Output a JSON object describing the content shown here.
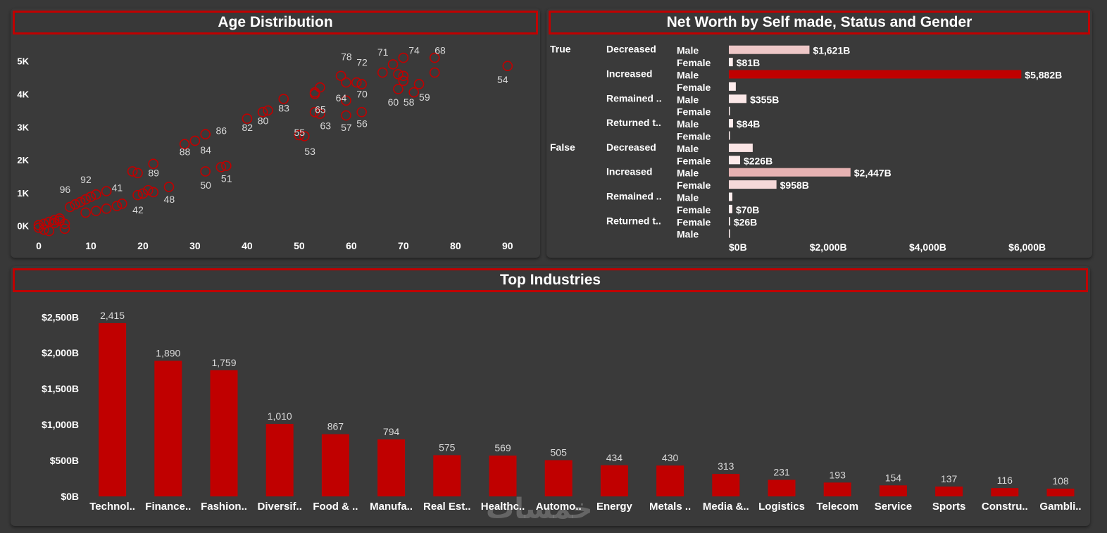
{
  "panels": {
    "age_title": "Age Distribution",
    "networth_title": "Net Worth by Self made, Status and Gender",
    "industries_title": "Top Industries"
  },
  "watermark": "خمسات",
  "colors": {
    "accent": "#c00000",
    "bg": "#383838",
    "panel": "#3a3a3a"
  },
  "chart_data": [
    {
      "type": "scatter",
      "title": "Age Distribution",
      "xlabel": "",
      "ylabel": "",
      "xlim": [
        0,
        93
      ],
      "ylim": [
        -200,
        5400
      ],
      "x_ticks": [
        0,
        10,
        20,
        30,
        40,
        50,
        60,
        70,
        80,
        90
      ],
      "y_ticks": [
        {
          "v": 0,
          "label": "0K"
        },
        {
          "v": 1000,
          "label": "1K"
        },
        {
          "v": 2000,
          "label": "2K"
        },
        {
          "v": 3000,
          "label": "3K"
        },
        {
          "v": 4000,
          "label": "4K"
        },
        {
          "v": 5000,
          "label": "5K"
        }
      ],
      "points": [
        [
          0,
          20
        ],
        [
          1,
          60
        ],
        [
          2,
          120
        ],
        [
          3,
          170
        ],
        [
          4,
          220
        ],
        [
          5,
          -90
        ],
        [
          1,
          -120
        ],
        [
          2,
          -160
        ],
        [
          0,
          -60
        ],
        [
          3,
          80
        ],
        [
          4,
          150
        ],
        [
          5,
          60
        ],
        [
          6,
          570
        ],
        [
          7,
          650
        ],
        [
          8,
          720
        ],
        [
          9,
          800
        ],
        [
          10,
          880
        ],
        [
          11,
          950
        ],
        [
          13,
          1050
        ],
        [
          9,
          400
        ],
        [
          11,
          450
        ],
        [
          13,
          520
        ],
        [
          15,
          600
        ],
        [
          16,
          670
        ],
        [
          18,
          1650
        ],
        [
          19,
          1600
        ],
        [
          19,
          930
        ],
        [
          20,
          980
        ],
        [
          21,
          1080
        ],
        [
          22,
          1020
        ],
        [
          22,
          1880
        ],
        [
          25,
          1180
        ],
        [
          28,
          2480
        ],
        [
          30,
          2580
        ],
        [
          32,
          2780
        ],
        [
          32,
          1650
        ],
        [
          35,
          1780
        ],
        [
          36,
          1820
        ],
        [
          40,
          3250
        ],
        [
          43,
          3450
        ],
        [
          44,
          3500
        ],
        [
          47,
          3850
        ],
        [
          50,
          2750
        ],
        [
          51,
          2720
        ],
        [
          53,
          3450
        ],
        [
          54,
          3400
        ],
        [
          53,
          4000
        ],
        [
          53,
          4050
        ],
        [
          54,
          4200
        ],
        [
          58,
          4550
        ],
        [
          59,
          4350
        ],
        [
          59,
          3800
        ],
        [
          59,
          3350
        ],
        [
          61,
          4350
        ],
        [
          62,
          4300
        ],
        [
          62,
          3450
        ],
        [
          66,
          4650
        ],
        [
          68,
          4900
        ],
        [
          69,
          4600
        ],
        [
          70,
          5100
        ],
        [
          70,
          4550
        ],
        [
          69,
          4150
        ],
        [
          70,
          4400
        ],
        [
          72,
          4050
        ],
        [
          73,
          4300
        ],
        [
          76,
          5100
        ],
        [
          76,
          4650
        ],
        [
          90,
          4850
        ]
      ],
      "labels": [
        {
          "text": "96",
          "x": 4,
          "y": 1000
        },
        {
          "text": "92",
          "x": 8,
          "y": 1300
        },
        {
          "text": "41",
          "x": 14,
          "y": 1050
        },
        {
          "text": "42",
          "x": 18,
          "y": 380
        },
        {
          "text": "89",
          "x": 21,
          "y": 1500
        },
        {
          "text": "48",
          "x": 24,
          "y": 700
        },
        {
          "text": "88",
          "x": 27,
          "y": 2140
        },
        {
          "text": "84",
          "x": 31,
          "y": 2190
        },
        {
          "text": "86",
          "x": 34,
          "y": 2780
        },
        {
          "text": "50",
          "x": 31,
          "y": 1120
        },
        {
          "text": "51",
          "x": 35,
          "y": 1330
        },
        {
          "text": "82",
          "x": 39,
          "y": 2880
        },
        {
          "text": "80",
          "x": 42,
          "y": 3080
        },
        {
          "text": "83",
          "x": 46,
          "y": 3470
        },
        {
          "text": "55",
          "x": 49,
          "y": 2730
        },
        {
          "text": "53",
          "x": 51,
          "y": 2150
        },
        {
          "text": "65",
          "x": 53,
          "y": 3420
        },
        {
          "text": "63",
          "x": 54,
          "y": 2930
        },
        {
          "text": "64",
          "x": 57,
          "y": 3780
        },
        {
          "text": "57",
          "x": 58,
          "y": 2880
        },
        {
          "text": "78",
          "x": 58,
          "y": 5030
        },
        {
          "text": "72",
          "x": 61,
          "y": 4850
        },
        {
          "text": "70",
          "x": 61,
          "y": 3890
        },
        {
          "text": "56",
          "x": 61,
          "y": 3000
        },
        {
          "text": "71",
          "x": 65,
          "y": 5170
        },
        {
          "text": "74",
          "x": 71,
          "y": 5220
        },
        {
          "text": "68",
          "x": 76,
          "y": 5220
        },
        {
          "text": "60",
          "x": 67,
          "y": 3650
        },
        {
          "text": "58",
          "x": 70,
          "y": 3650
        },
        {
          "text": "59",
          "x": 73,
          "y": 3800
        },
        {
          "text": "54",
          "x": 88,
          "y": 4330
        }
      ]
    },
    {
      "type": "bar",
      "orientation": "horizontal",
      "title": "Net Worth by Self made, Status and Gender",
      "xlim": [
        0,
        6600
      ],
      "x_ticks": [
        {
          "v": 0,
          "label": "$0B"
        },
        {
          "v": 2000,
          "label": "$2,000B"
        },
        {
          "v": 4000,
          "label": "$4,000B"
        },
        {
          "v": 6000,
          "label": "$6,000B"
        }
      ],
      "rows": [
        {
          "self_made": "True",
          "status": "Decreased",
          "gender": "Male",
          "value": 1621,
          "label": "$1,621B"
        },
        {
          "self_made": "",
          "status": "",
          "gender": "Female",
          "value": 81,
          "label": "$81B"
        },
        {
          "self_made": "",
          "status": "Increased",
          "gender": "Male",
          "value": 5882,
          "label": "$5,882B"
        },
        {
          "self_made": "",
          "status": "",
          "gender": "Female",
          "value": 140,
          "label": ""
        },
        {
          "self_made": "",
          "status": "Remained ..",
          "gender": "Male",
          "value": 355,
          "label": "$355B"
        },
        {
          "self_made": "",
          "status": "",
          "gender": "Female",
          "value": 8,
          "label": ""
        },
        {
          "self_made": "",
          "status": "Returned t..",
          "gender": "Male",
          "value": 84,
          "label": "$84B"
        },
        {
          "self_made": "",
          "status": "",
          "gender": "Female",
          "value": 5,
          "label": ""
        },
        {
          "self_made": "False",
          "status": "Decreased",
          "gender": "Male",
          "value": 480,
          "label": ""
        },
        {
          "self_made": "",
          "status": "",
          "gender": "Female",
          "value": 226,
          "label": "$226B"
        },
        {
          "self_made": "",
          "status": "Increased",
          "gender": "Male",
          "value": 2447,
          "label": "$2,447B"
        },
        {
          "self_made": "",
          "status": "",
          "gender": "Female",
          "value": 958,
          "label": "$958B"
        },
        {
          "self_made": "",
          "status": "Remained ..",
          "gender": "Male",
          "value": 70,
          "label": ""
        },
        {
          "self_made": "",
          "status": "",
          "gender": "Female",
          "value": 70,
          "label": "$70B"
        },
        {
          "self_made": "",
          "status": "Returned t..",
          "gender": "Female",
          "value": 26,
          "label": "$26B"
        },
        {
          "self_made": "",
          "status": "",
          "gender": "Male",
          "value": 8,
          "label": ""
        }
      ]
    },
    {
      "type": "bar",
      "title": "Top Industries",
      "ylim": [
        0,
        2650
      ],
      "y_ticks": [
        {
          "v": 0,
          "label": "$0B"
        },
        {
          "v": 500,
          "label": "$500B"
        },
        {
          "v": 1000,
          "label": "$1,000B"
        },
        {
          "v": 1500,
          "label": "$1,500B"
        },
        {
          "v": 2000,
          "label": "$2,000B"
        },
        {
          "v": 2500,
          "label": "$2,500B"
        }
      ],
      "categories": [
        "Technol..",
        "Finance..",
        "Fashion..",
        "Diversif..",
        "Food & ..",
        "Manufa..",
        "Real Est..",
        "Healthc..",
        "Automo..",
        "Energy",
        "Metals ..",
        "Media &..",
        "Logistics",
        "Telecom",
        "Service",
        "Sports",
        "Constru..",
        "Gambli.."
      ],
      "values": [
        2415,
        1890,
        1759,
        1010,
        867,
        794,
        575,
        569,
        505,
        434,
        430,
        313,
        231,
        193,
        154,
        137,
        116,
        108
      ],
      "value_labels": [
        "2,415",
        "1,890",
        "1,759",
        "1,010",
        "867",
        "794",
        "575",
        "569",
        "505",
        "434",
        "430",
        "313",
        "231",
        "193",
        "154",
        "137",
        "116",
        "108"
      ]
    }
  ]
}
